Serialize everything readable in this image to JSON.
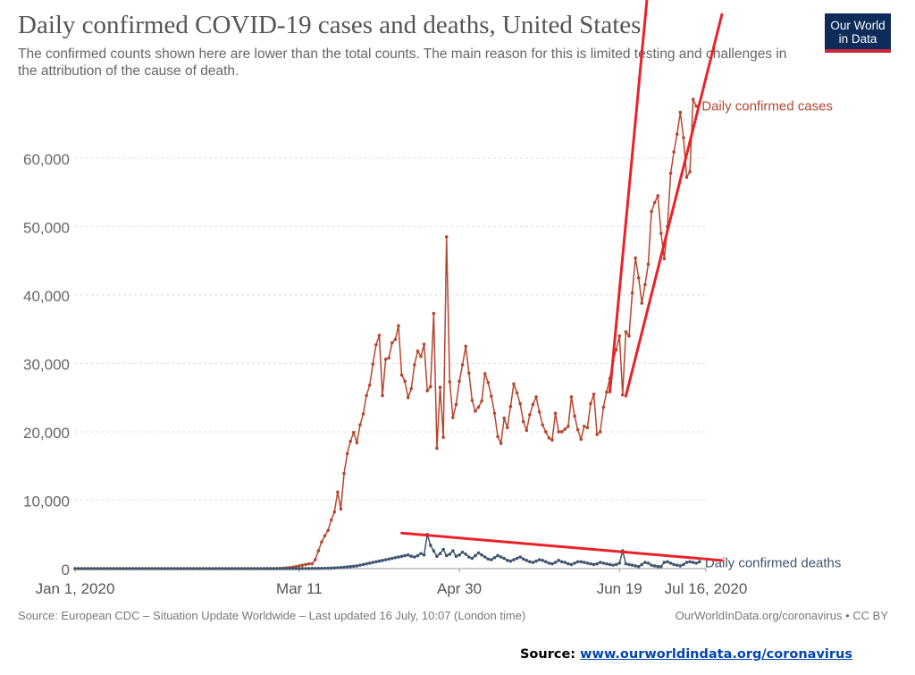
{
  "header": {
    "title": "Daily confirmed COVID-19 cases and deaths, United States",
    "subtitle": "The confirmed counts shown here are lower than the total counts. The main reason for this is limited testing and challenges in the attribution of the cause of death."
  },
  "logo": {
    "text": "Our World in Data",
    "bar_color": "#c8283d",
    "bg_color": "#0d2c5a"
  },
  "footer": {
    "source_line": "Source: European CDC – Situation Update Worldwide – Last updated 16 July, 10:07 (London time)",
    "credit": "OurWorldInData.org/coronavirus • CC BY"
  },
  "source_note": {
    "label": "Source:",
    "link_text": "www.ourworldindata.org/coronavirus"
  },
  "chart_data": {
    "type": "line",
    "title": "Daily confirmed COVID-19 cases and deaths, United States",
    "x_start": "2020-01-01",
    "x_end": "2020-07-16",
    "x_ticks": [
      {
        "label": "Jan 1, 2020",
        "date": "2020-01-01"
      },
      {
        "label": "Mar 11",
        "date": "2020-03-11"
      },
      {
        "label": "Apr 30",
        "date": "2020-04-30"
      },
      {
        "label": "Jun 19",
        "date": "2020-06-19"
      },
      {
        "label": "Jul 16, 2020",
        "date": "2020-07-16"
      }
    ],
    "y_ticks": [
      0,
      10000,
      20000,
      30000,
      40000,
      50000,
      60000
    ],
    "y_tick_labels": [
      "0",
      "10,000",
      "20,000",
      "30,000",
      "40,000",
      "50,000",
      "60,000"
    ],
    "ylim": [
      0,
      69000
    ],
    "grid": "horizontal dashed",
    "colors": {
      "cases": "#b5472f",
      "deaths": "#3f5570",
      "annotation": "#e8232a"
    },
    "series": [
      {
        "name": "Daily confirmed cases",
        "start_date": "2020-03-01",
        "values": [
          2,
          3,
          4,
          20,
          25,
          70,
          100,
          150,
          200,
          300,
          400,
          500,
          600,
          700,
          700,
          1300,
          2600,
          3900,
          4800,
          5600,
          7100,
          8300,
          11200,
          8700,
          13900,
          16800,
          18600,
          19900,
          18400,
          21000,
          22600,
          25300,
          26800,
          29900,
          32700,
          34100,
          25300,
          30600,
          30800,
          33000,
          33500,
          35500,
          28300,
          27400,
          25000,
          26300,
          29800,
          31800,
          31000,
          32800,
          26000,
          26600,
          37300,
          17600,
          26500,
          19200,
          48500,
          27300,
          22100,
          24000,
          27400,
          29800,
          32500,
          28600,
          24600,
          23000,
          23600,
          24500,
          28500,
          27200,
          25200,
          22700,
          19300,
          18300,
          22000,
          20600,
          23700,
          27000,
          25700,
          24100,
          21500,
          20200,
          22500,
          24000,
          25100,
          22900,
          21000,
          20000,
          19100,
          18800,
          22700,
          20000,
          20000,
          20400,
          20800,
          25100,
          22300,
          20300,
          18900,
          20800,
          20600,
          24100,
          25500,
          19600,
          20000,
          23600,
          25800,
          27800,
          30400,
          32000,
          34000,
          25400,
          34600,
          34000,
          40300,
          45400,
          42500,
          38800,
          41500,
          44500,
          52200,
          53500,
          54500,
          49000,
          45300,
          50000,
          57800,
          60900,
          63500,
          66700,
          63000,
          57200,
          58000,
          68600,
          67600
        ]
      },
      {
        "name": "Daily confirmed deaths",
        "start_date": "2020-03-01",
        "values": [
          0,
          0,
          1,
          1,
          2,
          2,
          2,
          3,
          4,
          5,
          7,
          8,
          10,
          15,
          20,
          25,
          30,
          40,
          50,
          60,
          70,
          100,
          130,
          160,
          200,
          250,
          300,
          350,
          400,
          500,
          600,
          700,
          800,
          900,
          1000,
          1100,
          1200,
          1300,
          1400,
          1500,
          1600,
          1700,
          1800,
          1900,
          2000,
          1800,
          1700,
          1900,
          2200,
          2000,
          5000,
          3400,
          2600,
          1800,
          2200,
          2800,
          1900,
          2100,
          2600,
          1800,
          2000,
          2400,
          2100,
          1700,
          1500,
          1900,
          2300,
          2000,
          1700,
          1400,
          1300,
          1600,
          1900,
          1700,
          1500,
          1200,
          1100,
          1300,
          1500,
          1700,
          1400,
          1200,
          1000,
          900,
          1100,
          1300,
          1200,
          1000,
          800,
          700,
          900,
          1200,
          1000,
          900,
          700,
          600,
          800,
          1000,
          1000,
          900,
          800,
          700,
          600,
          700,
          900,
          800,
          700,
          600,
          500,
          600,
          800,
          2600,
          700,
          600,
          500,
          400,
          300,
          600,
          900,
          800,
          500,
          400,
          300,
          300,
          900,
          1000,
          800,
          600,
          500,
          400,
          600,
          900,
          1000,
          900,
          800,
          1000
        ]
      }
    ],
    "annotations": [
      {
        "type": "line",
        "from": {
          "date": "2020-06-16",
          "value": 25800
        },
        "to": {
          "date": "2020-07-03",
          "value": 110000
        }
      },
      {
        "type": "line",
        "from": {
          "date": "2020-06-21",
          "value": 25200
        },
        "to": {
          "date": "2020-07-21",
          "value": 81000
        }
      },
      {
        "type": "line",
        "from": {
          "date": "2020-04-12",
          "value": 5200
        },
        "to": {
          "date": "2020-07-21",
          "value": 1200
        }
      }
    ]
  }
}
